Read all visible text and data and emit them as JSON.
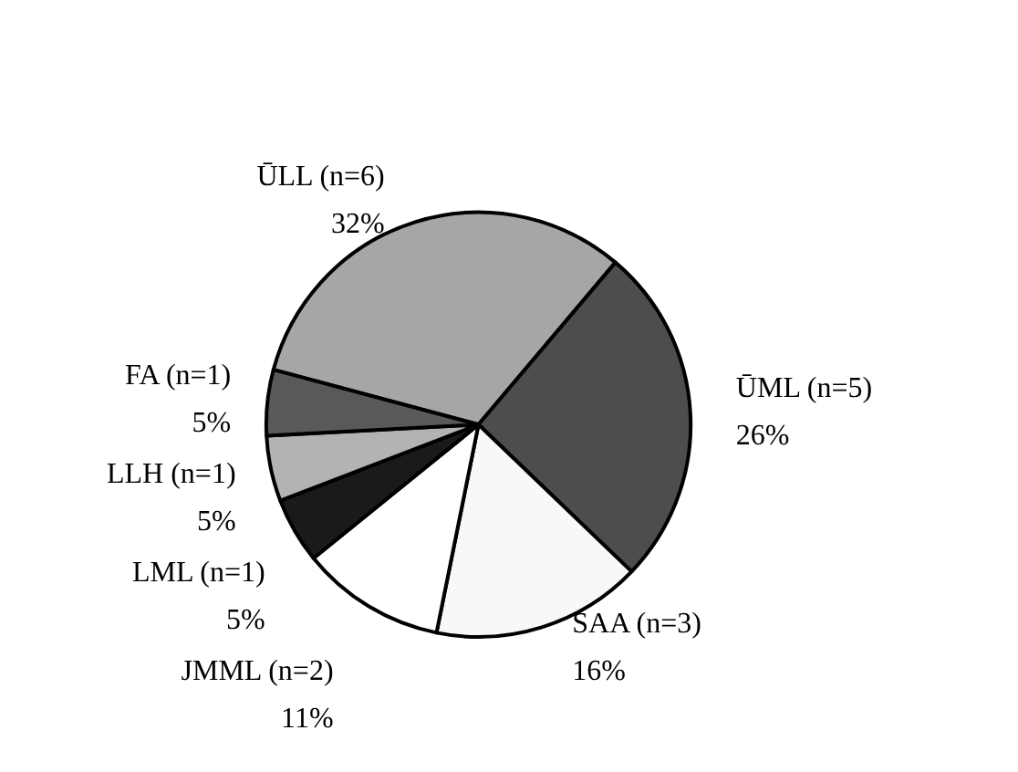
{
  "chart_data": {
    "type": "pie",
    "categories": [
      "ŪLL (n=6)",
      "ŪML (n=5)",
      "SAA (n=3)",
      "JMML (n=2)",
      "LML (n=1)",
      "LLH (n=1)",
      "FA (n=1)"
    ],
    "values": [
      32,
      26,
      16,
      11,
      5,
      5,
      5
    ],
    "value_labels": [
      "32%",
      "26%",
      "16%",
      "11%",
      "5%",
      "5%",
      "5%"
    ],
    "colors": [
      "#a6a6a6",
      "#4d4d4d",
      "#f8f8f8",
      "#ffffff",
      "#1a1a1a",
      "#b3b3b3",
      "#595959"
    ],
    "legend": false
  }
}
